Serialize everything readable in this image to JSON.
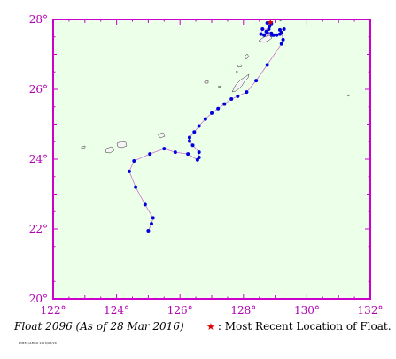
{
  "map": {
    "extent": {
      "lon_min": 122,
      "lon_max": 132,
      "lat_min": 20,
      "lat_max": 28
    },
    "x_ticks": [
      {
        "value": 122,
        "label": "122°"
      },
      {
        "value": 124,
        "label": "124°"
      },
      {
        "value": 126,
        "label": "126°"
      },
      {
        "value": 128,
        "label": "128°"
      },
      {
        "value": 130,
        "label": "130°"
      },
      {
        "value": 132,
        "label": "132°"
      }
    ],
    "y_ticks": [
      {
        "value": 28,
        "label": "28°"
      },
      {
        "value": 26,
        "label": "26°"
      },
      {
        "value": 24,
        "label": "24°"
      },
      {
        "value": 22,
        "label": "22°"
      },
      {
        "value": 20,
        "label": "20°"
      }
    ],
    "colors": {
      "sea": "#ecffe8",
      "frame": "#cc00cc",
      "track": "#d070d0",
      "point": "#0000dd",
      "latest": "#e00000",
      "land": "#f4f4f4",
      "coast": "#333333"
    },
    "track": [
      [
        125.0,
        21.95
      ],
      [
        125.1,
        22.15
      ],
      [
        125.15,
        22.32
      ],
      [
        124.9,
        22.7
      ],
      [
        124.6,
        23.2
      ],
      [
        124.4,
        23.65
      ],
      [
        124.55,
        23.95
      ],
      [
        125.05,
        24.15
      ],
      [
        125.5,
        24.3
      ],
      [
        125.85,
        24.2
      ],
      [
        126.25,
        24.15
      ],
      [
        126.55,
        23.98
      ],
      [
        126.6,
        24.05
      ],
      [
        126.6,
        24.2
      ],
      [
        126.4,
        24.4
      ],
      [
        126.3,
        24.52
      ],
      [
        126.3,
        24.62
      ],
      [
        126.45,
        24.78
      ],
      [
        126.6,
        24.95
      ],
      [
        126.8,
        25.15
      ],
      [
        127.0,
        25.32
      ],
      [
        127.2,
        25.45
      ],
      [
        127.4,
        25.58
      ],
      [
        127.62,
        25.72
      ],
      [
        127.82,
        25.8
      ],
      [
        128.1,
        25.92
      ],
      [
        128.4,
        26.25
      ],
      [
        128.75,
        26.7
      ],
      [
        129.2,
        27.3
      ],
      [
        129.25,
        27.42
      ],
      [
        129.2,
        27.62
      ],
      [
        129.15,
        27.7
      ],
      [
        129.28,
        27.72
      ],
      [
        129.15,
        27.58
      ],
      [
        128.95,
        27.55
      ],
      [
        128.65,
        27.55
      ],
      [
        128.55,
        27.58
      ],
      [
        128.6,
        27.72
      ],
      [
        128.8,
        27.72
      ],
      [
        128.75,
        27.62
      ],
      [
        128.9,
        27.55
      ],
      [
        129.05,
        27.55
      ],
      [
        128.88,
        27.6
      ],
      [
        128.72,
        27.65
      ],
      [
        128.82,
        27.8
      ],
      [
        128.75,
        27.9
      ],
      [
        128.88,
        27.88
      ]
    ],
    "latest": [
      128.85,
      27.92
    ]
  },
  "caption": "Float 2096 (As of 28 Mar 2016)",
  "legend": {
    "symbol": "★",
    "label": ": Most Recent Location of Float."
  },
  "footnote": "PMEL/ARGO 2016/03/28"
}
